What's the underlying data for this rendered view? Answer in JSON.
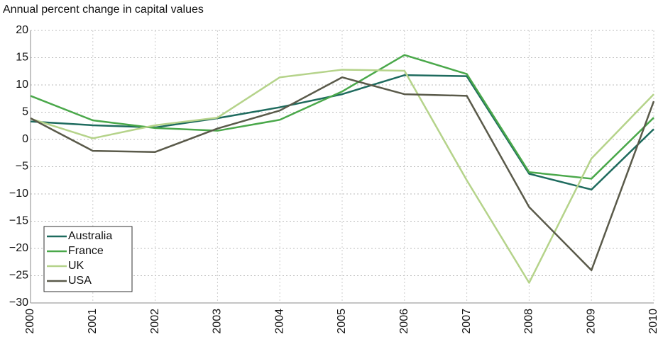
{
  "chart_data": {
    "type": "line",
    "title": "Annual percent change in capital values",
    "x": [
      2000,
      2001,
      2002,
      2003,
      2004,
      2005,
      2006,
      2007,
      2008,
      2009,
      2010
    ],
    "xlim": [
      2000,
      2010
    ],
    "xticks": [
      2000,
      2001,
      2002,
      2003,
      2004,
      2005,
      2006,
      2007,
      2008,
      2009,
      2010
    ],
    "ylim": [
      -30,
      20
    ],
    "yticks": [
      {
        "value": -30,
        "label": "−30"
      },
      {
        "value": -25,
        "label": "−25"
      },
      {
        "value": -20,
        "label": "−20"
      },
      {
        "value": -15,
        "label": "−15"
      },
      {
        "value": -10,
        "label": "−10"
      },
      {
        "value": -5,
        "label": "−5"
      },
      0,
      5,
      10,
      15,
      20
    ],
    "grid": true,
    "legend": "lower left",
    "series": [
      {
        "name": "Australia",
        "color": "#1e6b5e",
        "values": [
          3.3,
          2.6,
          2.2,
          3.9,
          5.9,
          8.3,
          11.8,
          11.6,
          -6.3,
          -9.2,
          1.9
        ]
      },
      {
        "name": "France",
        "color": "#4aa84a",
        "values": [
          8.0,
          3.5,
          2.1,
          1.6,
          3.6,
          8.8,
          15.5,
          12.0,
          -6.0,
          -7.2,
          4.0
        ]
      },
      {
        "name": "UK",
        "color": "#b5d38a",
        "values": [
          3.8,
          0.2,
          2.6,
          4.0,
          11.4,
          12.8,
          12.6,
          -7.5,
          -26.3,
          -3.5,
          8.3
        ]
      },
      {
        "name": "USA",
        "color": "#5a5a4a",
        "values": [
          3.9,
          -2.1,
          -2.3,
          2.0,
          5.3,
          11.4,
          8.3,
          8.0,
          -12.4,
          -24.0,
          7.0
        ]
      }
    ]
  }
}
